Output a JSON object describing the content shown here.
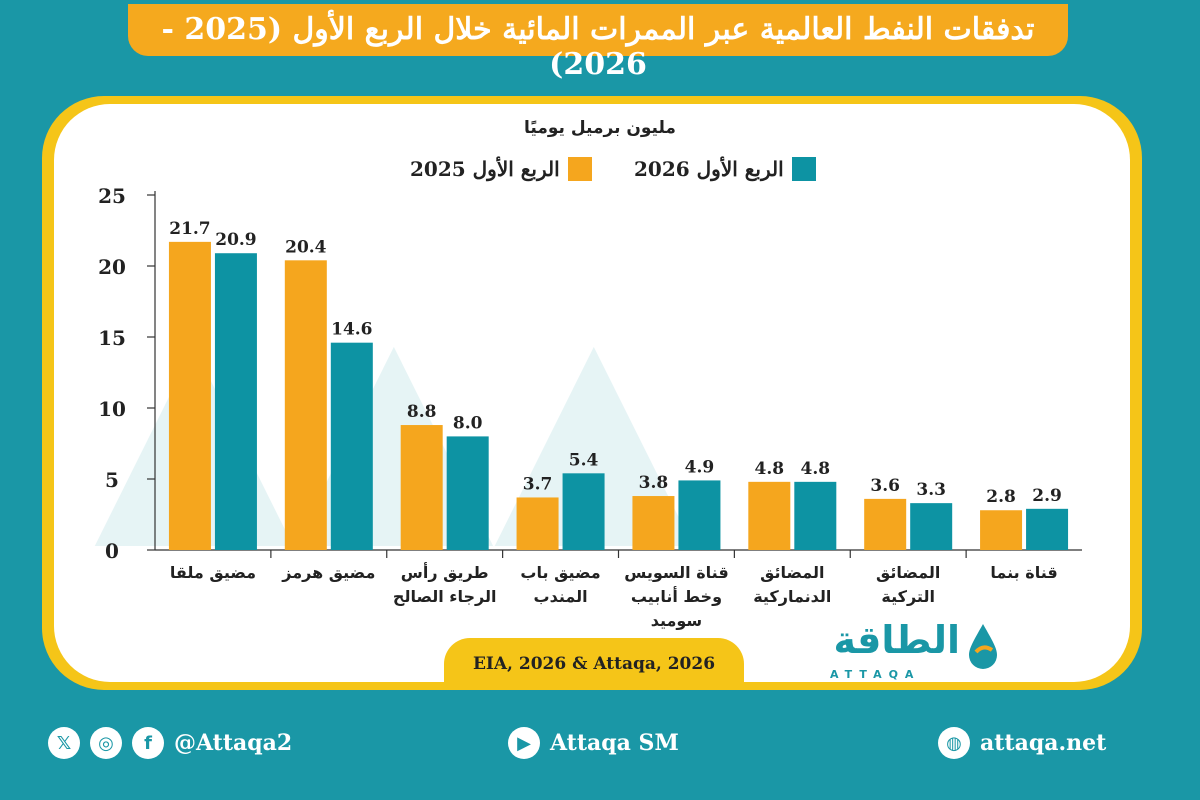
{
  "header": {
    "title": "تدفقات النفط العالمية عبر الممرات المائية خلال الربع الأول (2025 - 2026)"
  },
  "chart_data": {
    "type": "bar",
    "unit_label": "مليون برميل يوميًا",
    "categories": [
      [
        "مضيق ملقا"
      ],
      [
        "مضيق هرمز"
      ],
      [
        "طريق رأس",
        "الرجاء الصالح"
      ],
      [
        "مضيق باب",
        "المندب"
      ],
      [
        "قناة السويس",
        "وخط أنابيب",
        "سوميد"
      ],
      [
        "المضائق",
        "الدنماركية"
      ],
      [
        "المضائق",
        "التركية"
      ],
      [
        "قناة بنما"
      ]
    ],
    "series": [
      {
        "name": "الربع الأول 2025",
        "color": "#f5a61e",
        "values": [
          21.7,
          20.4,
          8.8,
          3.7,
          3.8,
          4.8,
          3.6,
          2.8
        ]
      },
      {
        "name": "الربع الأول 2026",
        "color": "#0d93a3",
        "values": [
          20.9,
          14.6,
          8.0,
          5.4,
          4.9,
          4.8,
          3.3,
          2.9
        ]
      }
    ],
    "ylim": [
      0,
      25
    ],
    "yticks": [
      0,
      5,
      10,
      15,
      20,
      25
    ],
    "legend_position": "top",
    "grid": false
  },
  "source": "EIA, 2026 & Attaqa, 2026",
  "brand": {
    "arabic": "الطاقة",
    "latin": "ATTAQA"
  },
  "footer": {
    "social_handle": "@Attaqa2",
    "youtube": "Attaqa SM",
    "website": "attaqa.net"
  }
}
